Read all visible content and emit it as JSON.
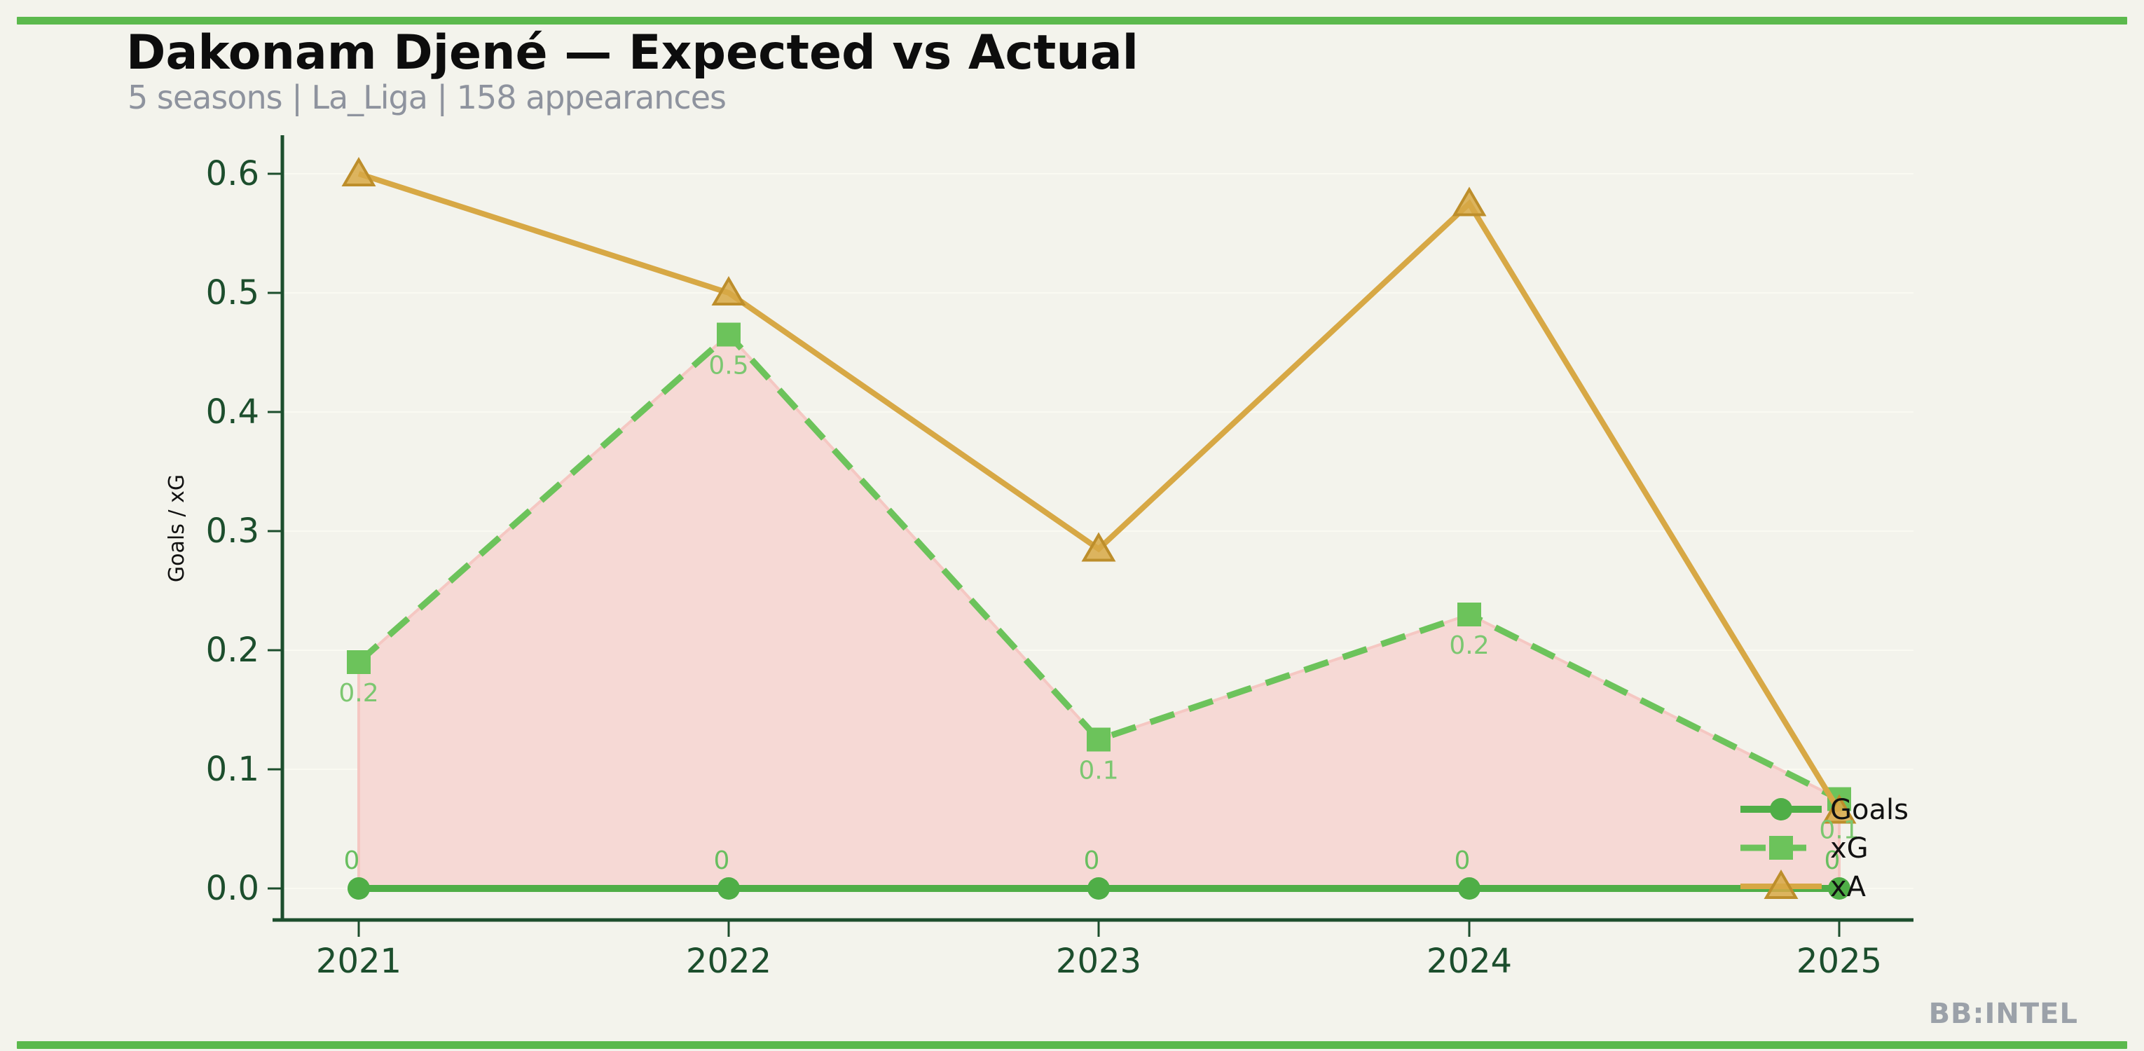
{
  "page": {
    "background": "#f3f3ec",
    "accent_bar_color": "#5bb94d"
  },
  "header": {
    "title": "Dakonam Djené — Expected vs Actual",
    "subtitle": "5 seasons | La_Liga | 158 appearances"
  },
  "watermark": "BB:INTEL",
  "chart_data": {
    "type": "line",
    "title": "Dakonam Djené — Expected vs Actual",
    "subtitle": "5 seasons | La_Liga | 158 appearances",
    "categories": [
      "2021",
      "2022",
      "2023",
      "2024",
      "2025"
    ],
    "series": [
      {
        "name": "Goals",
        "values": [
          0,
          0,
          0,
          0,
          0
        ],
        "point_labels": [
          "0",
          "0",
          "0",
          "0",
          "0"
        ],
        "color": "#4fae47",
        "label_color": "#69bf60",
        "marker": "circle",
        "line_style": "solid"
      },
      {
        "name": "xG",
        "values": [
          0.19,
          0.465,
          0.125,
          0.23,
          0.075
        ],
        "point_labels": [
          "0.2",
          "0.5",
          "0.1",
          "0.2",
          "0.1"
        ],
        "color": "#6cc35b",
        "label_color": "#7cc771",
        "marker": "square",
        "line_style": "dashed"
      },
      {
        "name": "xA",
        "values": [
          0.6,
          0.5,
          0.285,
          0.575,
          0.065
        ],
        "point_labels": [],
        "color": "#d7a845",
        "marker_edge_color": "#bd8e2b",
        "marker": "triangle",
        "line_style": "solid"
      }
    ],
    "fill_between": {
      "from": "Goals",
      "to": "xG",
      "fill_color": "#f6d9d5",
      "edge_color": "#f5c7c2"
    },
    "xlabel": "",
    "ylabel": "Goals / xG",
    "yticks": [
      "0.0",
      "0.1",
      "0.2",
      "0.3",
      "0.4",
      "0.5",
      "0.6"
    ],
    "ylim": [
      0,
      0.65
    ],
    "grid": "horizontal-faint",
    "grid_color": "#fafaf2",
    "axis_color": "#1c4e2d",
    "legend": {
      "position": "inside-bottom-right",
      "entries": [
        "Goals",
        "xG",
        "xA"
      ]
    }
  }
}
